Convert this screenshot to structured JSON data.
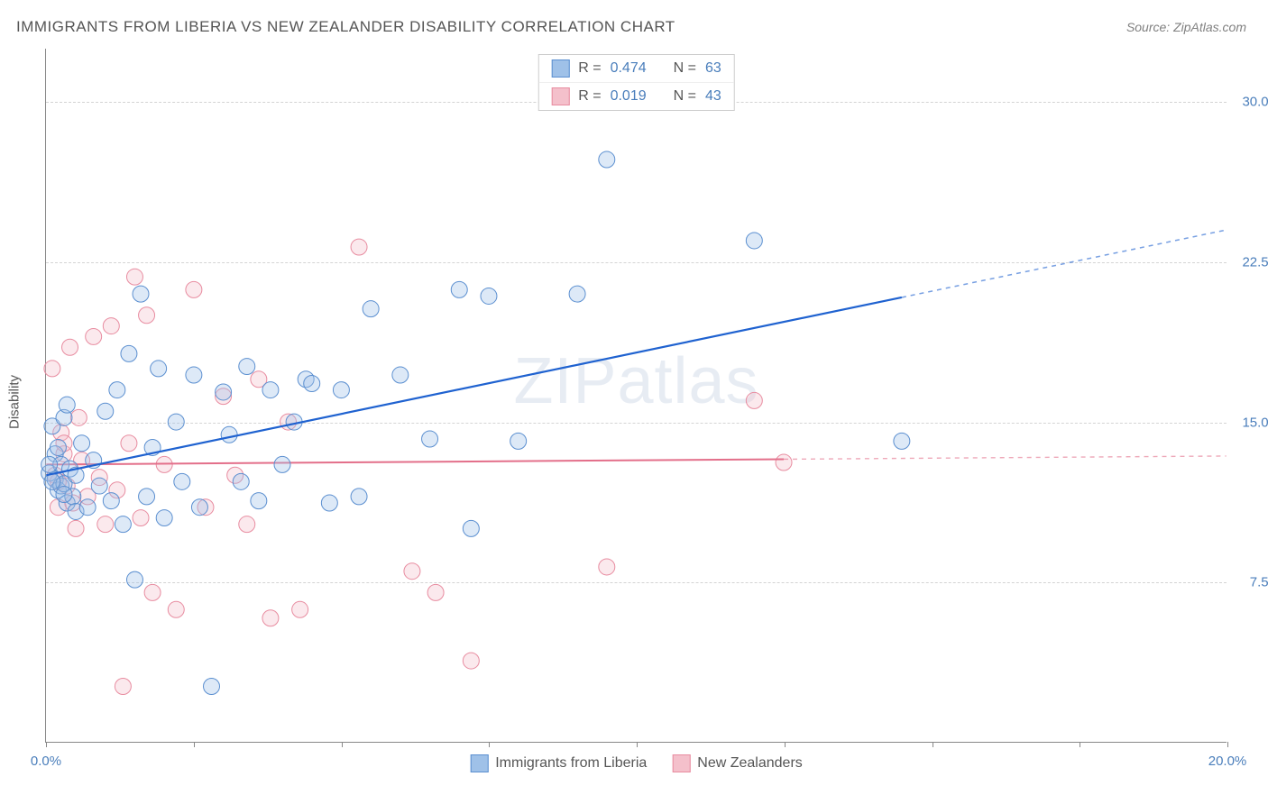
{
  "title": "IMMIGRANTS FROM LIBERIA VS NEW ZEALANDER DISABILITY CORRELATION CHART",
  "source_label": "Source: ZipAtlas.com",
  "watermark": "ZIPatlas",
  "y_axis_title": "Disability",
  "chart": {
    "type": "scatter",
    "background_color": "#ffffff",
    "grid_color": "#d4d4d4",
    "axis_color": "#888888",
    "text_label_color": "#4a7ebb",
    "xlim": [
      0.0,
      20.0
    ],
    "ylim": [
      0.0,
      32.5
    ],
    "x_ticks": [
      0.0,
      2.5,
      5.0,
      7.5,
      10.0,
      12.5,
      15.0,
      17.5,
      20.0
    ],
    "x_tick_labels": {
      "0": "0.0%",
      "20": "20.0%"
    },
    "y_ticks": [
      7.5,
      15.0,
      22.5,
      30.0
    ],
    "y_tick_labels": {
      "7.5": "7.5%",
      "15": "15.0%",
      "22.5": "22.5%",
      "30": "30.0%"
    },
    "marker_radius": 9,
    "marker_fill_opacity": 0.35,
    "marker_stroke_width": 1,
    "series": [
      {
        "id": "liberia",
        "label": "Immigrants from Liberia",
        "color_fill": "#9fc1e8",
        "color_stroke": "#5b8fd0",
        "R": "0.474",
        "N": "63",
        "points": [
          [
            0.05,
            12.6
          ],
          [
            0.1,
            14.8
          ],
          [
            0.15,
            12.3
          ],
          [
            0.15,
            13.5
          ],
          [
            0.2,
            11.8
          ],
          [
            0.25,
            12.0
          ],
          [
            0.25,
            13.0
          ],
          [
            0.3,
            15.2
          ],
          [
            0.3,
            12.1
          ],
          [
            0.35,
            11.2
          ],
          [
            0.35,
            15.8
          ],
          [
            0.4,
            12.8
          ],
          [
            0.45,
            11.5
          ],
          [
            0.5,
            10.8
          ],
          [
            0.5,
            12.5
          ],
          [
            0.6,
            14.0
          ],
          [
            0.7,
            11.0
          ],
          [
            0.8,
            13.2
          ],
          [
            0.9,
            12.0
          ],
          [
            1.0,
            15.5
          ],
          [
            1.1,
            11.3
          ],
          [
            1.2,
            16.5
          ],
          [
            1.3,
            10.2
          ],
          [
            1.4,
            18.2
          ],
          [
            1.5,
            7.6
          ],
          [
            1.6,
            21.0
          ],
          [
            1.7,
            11.5
          ],
          [
            1.8,
            13.8
          ],
          [
            1.9,
            17.5
          ],
          [
            2.0,
            10.5
          ],
          [
            2.2,
            15.0
          ],
          [
            2.3,
            12.2
          ],
          [
            2.5,
            17.2
          ],
          [
            2.6,
            11.0
          ],
          [
            2.8,
            2.6
          ],
          [
            3.0,
            16.4
          ],
          [
            3.1,
            14.4
          ],
          [
            3.3,
            12.2
          ],
          [
            3.4,
            17.6
          ],
          [
            3.6,
            11.3
          ],
          [
            3.8,
            16.5
          ],
          [
            4.0,
            13.0
          ],
          [
            4.2,
            15.0
          ],
          [
            4.4,
            17.0
          ],
          [
            4.5,
            16.8
          ],
          [
            4.8,
            11.2
          ],
          [
            5.0,
            16.5
          ],
          [
            5.3,
            11.5
          ],
          [
            5.5,
            20.3
          ],
          [
            6.0,
            17.2
          ],
          [
            6.5,
            14.2
          ],
          [
            7.0,
            21.2
          ],
          [
            7.2,
            10.0
          ],
          [
            7.5,
            20.9
          ],
          [
            8.0,
            14.1
          ],
          [
            9.0,
            21.0
          ],
          [
            9.5,
            27.3
          ],
          [
            12.0,
            23.5
          ],
          [
            14.5,
            14.1
          ],
          [
            0.05,
            13.0
          ],
          [
            0.1,
            12.2
          ],
          [
            0.2,
            13.8
          ],
          [
            0.3,
            11.6
          ]
        ],
        "trendline": {
          "x1": 0.0,
          "y1": 12.5,
          "x2": 20.0,
          "y2": 24.0,
          "color": "#1f62d0",
          "width": 2.2,
          "x_data_max": 14.5
        }
      },
      {
        "id": "newzealand",
        "label": "New Zealanders",
        "color_fill": "#f4c0cb",
        "color_stroke": "#e88ca0",
        "R": "0.019",
        "N": "43",
        "points": [
          [
            0.1,
            17.5
          ],
          [
            0.15,
            12.5
          ],
          [
            0.2,
            11.0
          ],
          [
            0.25,
            14.5
          ],
          [
            0.3,
            13.5
          ],
          [
            0.35,
            12.0
          ],
          [
            0.4,
            18.5
          ],
          [
            0.45,
            11.2
          ],
          [
            0.5,
            10.0
          ],
          [
            0.55,
            15.2
          ],
          [
            0.6,
            13.2
          ],
          [
            0.7,
            11.5
          ],
          [
            0.8,
            19.0
          ],
          [
            0.9,
            12.4
          ],
          [
            1.0,
            10.2
          ],
          [
            1.1,
            19.5
          ],
          [
            1.2,
            11.8
          ],
          [
            1.3,
            2.6
          ],
          [
            1.4,
            14.0
          ],
          [
            1.5,
            21.8
          ],
          [
            1.6,
            10.5
          ],
          [
            1.7,
            20.0
          ],
          [
            1.8,
            7.0
          ],
          [
            2.0,
            13.0
          ],
          [
            2.2,
            6.2
          ],
          [
            2.5,
            21.2
          ],
          [
            2.7,
            11.0
          ],
          [
            3.0,
            16.2
          ],
          [
            3.2,
            12.5
          ],
          [
            3.4,
            10.2
          ],
          [
            3.6,
            17.0
          ],
          [
            3.8,
            5.8
          ],
          [
            4.1,
            15.0
          ],
          [
            4.3,
            6.2
          ],
          [
            5.3,
            23.2
          ],
          [
            6.2,
            8.0
          ],
          [
            6.6,
            7.0
          ],
          [
            7.2,
            3.8
          ],
          [
            9.5,
            8.2
          ],
          [
            12.0,
            16.0
          ],
          [
            12.5,
            13.1
          ],
          [
            0.2,
            12.2
          ],
          [
            0.3,
            14.0
          ]
        ],
        "trendline": {
          "x1": 0.0,
          "y1": 13.0,
          "x2": 20.0,
          "y2": 13.4,
          "color": "#e36f8a",
          "width": 2.0,
          "x_data_max": 12.5
        }
      }
    ]
  },
  "legend_top": {
    "r_label": "R =",
    "n_label": "N ="
  }
}
